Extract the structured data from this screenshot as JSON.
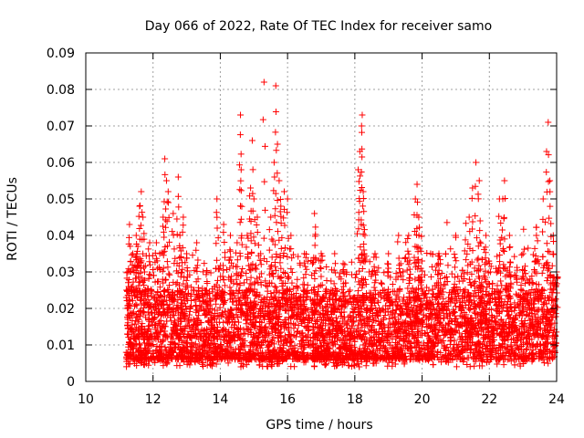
{
  "chart_data": {
    "type": "scatter",
    "title": "Day 066 of 2022, Rate Of TEC Index for receiver samo",
    "xlabel": "GPS time / hours",
    "ylabel": "ROTI / TECUs",
    "xlim": [
      10,
      24
    ],
    "ylim": [
      0,
      0.09
    ],
    "x_ticks": [
      10,
      12,
      14,
      16,
      18,
      20,
      22,
      24
    ],
    "x_tick_labels": [
      "10",
      "12",
      "14",
      "16",
      "18",
      "20",
      "22",
      "24"
    ],
    "y_ticks": [
      0,
      0.01,
      0.02,
      0.03,
      0.04,
      0.05,
      0.06,
      0.07,
      0.08,
      0.09
    ],
    "y_tick_labels": [
      "0",
      "0.01",
      "0.02",
      "0.03",
      "0.04",
      "0.05",
      "0.06",
      "0.07",
      "0.08",
      "0.09"
    ],
    "grid": true,
    "marker": "+",
    "marker_color": "#ff0000",
    "series": [
      {
        "name": "ROTI",
        "points": [
          [
            11.25,
            0.03
          ],
          [
            11.3,
            0.043
          ],
          [
            11.4,
            0.035
          ],
          [
            11.5,
            0.04
          ],
          [
            11.55,
            0.037
          ],
          [
            11.6,
            0.048
          ],
          [
            11.65,
            0.052
          ],
          [
            11.7,
            0.045
          ],
          [
            11.75,
            0.03
          ],
          [
            11.9,
            0.038
          ],
          [
            12.1,
            0.038
          ],
          [
            12.2,
            0.035
          ],
          [
            12.3,
            0.045
          ],
          [
            12.35,
            0.061
          ],
          [
            12.4,
            0.055
          ],
          [
            12.45,
            0.052
          ],
          [
            12.6,
            0.046
          ],
          [
            12.75,
            0.056
          ],
          [
            12.8,
            0.04
          ],
          [
            12.9,
            0.045
          ],
          [
            13.0,
            0.035
          ],
          [
            13.3,
            0.038
          ],
          [
            13.6,
            0.03
          ],
          [
            13.9,
            0.05
          ],
          [
            14.1,
            0.043
          ],
          [
            14.3,
            0.04
          ],
          [
            14.5,
            0.038
          ],
          [
            14.6,
            0.073
          ],
          [
            14.62,
            0.058
          ],
          [
            14.8,
            0.04
          ],
          [
            14.9,
            0.053
          ],
          [
            14.95,
            0.066
          ],
          [
            15.0,
            0.05
          ],
          [
            15.1,
            0.045
          ],
          [
            15.2,
            0.035
          ],
          [
            15.3,
            0.082
          ],
          [
            15.5,
            0.045
          ],
          [
            15.6,
            0.06
          ],
          [
            15.65,
            0.081
          ],
          [
            15.7,
            0.065
          ],
          [
            15.75,
            0.055
          ],
          [
            15.8,
            0.048
          ],
          [
            15.9,
            0.052
          ],
          [
            16.0,
            0.05
          ],
          [
            16.1,
            0.04
          ],
          [
            16.5,
            0.035
          ],
          [
            16.8,
            0.046
          ],
          [
            17.0,
            0.035
          ],
          [
            17.4,
            0.035
          ],
          [
            17.7,
            0.032
          ],
          [
            18.1,
            0.058
          ],
          [
            18.15,
            0.063
          ],
          [
            18.2,
            0.07
          ],
          [
            18.22,
            0.073
          ],
          [
            18.25,
            0.052
          ],
          [
            18.3,
            0.04
          ],
          [
            18.6,
            0.035
          ],
          [
            19.0,
            0.035
          ],
          [
            19.3,
            0.04
          ],
          [
            19.6,
            0.04
          ],
          [
            19.8,
            0.05
          ],
          [
            19.85,
            0.054
          ],
          [
            19.9,
            0.045
          ],
          [
            20.0,
            0.033
          ],
          [
            20.5,
            0.035
          ],
          [
            21.0,
            0.04
          ],
          [
            21.4,
            0.045
          ],
          [
            21.5,
            0.053
          ],
          [
            21.6,
            0.06
          ],
          [
            21.7,
            0.055
          ],
          [
            21.9,
            0.04
          ],
          [
            22.3,
            0.05
          ],
          [
            22.4,
            0.05
          ],
          [
            22.45,
            0.055
          ],
          [
            22.6,
            0.04
          ],
          [
            23.0,
            0.035
          ],
          [
            23.4,
            0.04
          ],
          [
            23.6,
            0.05
          ],
          [
            23.7,
            0.063
          ],
          [
            23.75,
            0.071
          ],
          [
            23.8,
            0.055
          ],
          [
            23.9,
            0.04
          ],
          [
            24.0,
            0.03
          ]
        ],
        "note": "Dense band of points between roughly 0.005 and 0.03 TECU across 11.2–24 h"
      }
    ],
    "dense_band": {
      "x_range": [
        11.2,
        24
      ],
      "y_min": 0.004,
      "y_typical_low": 0.006,
      "y_typical_high": 0.025
    }
  }
}
